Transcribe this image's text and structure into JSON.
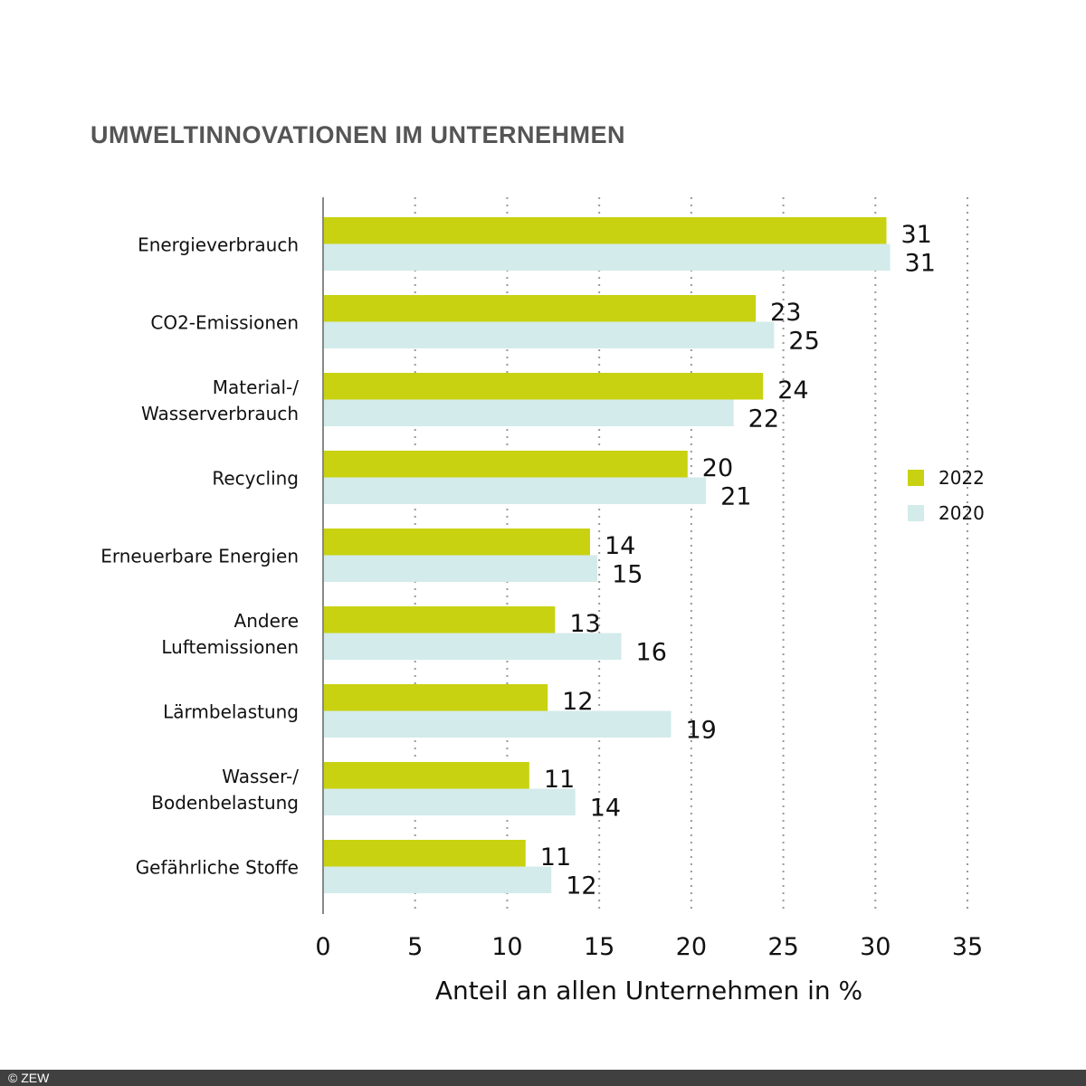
{
  "chart_data": {
    "type": "bar",
    "orientation": "horizontal",
    "title": "UMWELTINNOVATIONEN IM UNTERNEHMEN",
    "xlabel": "Anteil an allen Unternehmen in %",
    "xlim": [
      0,
      35
    ],
    "xticks": [
      "0",
      "5",
      "10",
      "15",
      "20",
      "25",
      "30",
      "35"
    ],
    "grid": "vertical dotted",
    "legend_position": "right",
    "categories": [
      [
        "Energieverbrauch"
      ],
      [
        "CO2-Emissionen"
      ],
      [
        "Material-/",
        "Wasserverbrauch"
      ],
      [
        "Recycling"
      ],
      [
        "Erneuerbare Energien"
      ],
      [
        "Andere",
        "Luftemissionen"
      ],
      [
        "Lärmbelastung"
      ],
      [
        "Wasser-/",
        "Bodenbelastung"
      ],
      [
        "Gefährliche Stoffe"
      ]
    ],
    "series": [
      {
        "name": "2022",
        "color": "#c8d210",
        "values": [
          30.6,
          23.5,
          23.9,
          19.8,
          14.5,
          12.6,
          12.2,
          11.2,
          11.0
        ],
        "labels": [
          "31",
          "23",
          "24",
          "20",
          "14",
          "13",
          "12",
          "11",
          "11"
        ]
      },
      {
        "name": "2020",
        "color": "#d3ebea",
        "values": [
          30.8,
          24.5,
          22.3,
          20.8,
          14.9,
          16.2,
          18.9,
          13.7,
          12.4
        ],
        "labels": [
          "31",
          "25",
          "22",
          "21",
          "15",
          "16",
          "19",
          "14",
          "12"
        ]
      }
    ]
  },
  "footer": {
    "copyright": "© ZEW"
  }
}
